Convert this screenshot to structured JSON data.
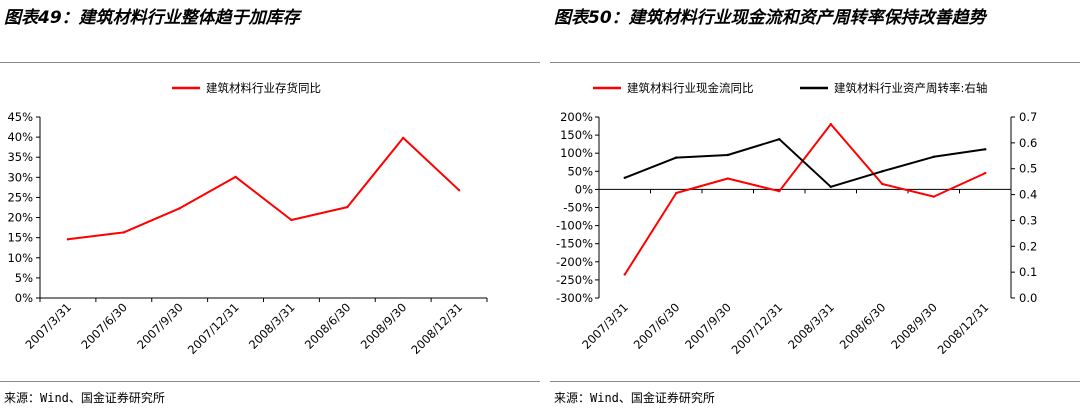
{
  "left": {
    "title": "图表49：建筑材料行业整体趋于加库存",
    "source": "来源：Wind、国金证券研究所",
    "chart_data": {
      "type": "line",
      "categories": [
        "2007/3/31",
        "2007/6/30",
        "2007/9/30",
        "2007/12/31",
        "2008/3/31",
        "2008/6/30",
        "2008/9/30",
        "2008/12/31"
      ],
      "series": [
        {
          "name": "建筑材料行业存货同比",
          "color": "#ff0000",
          "values": [
            14.6,
            16.3,
            22.3,
            30.1,
            19.4,
            22.6,
            39.8,
            26.8
          ]
        }
      ],
      "yticks": [
        "0%",
        "5%",
        "10%",
        "15%",
        "20%",
        "25%",
        "30%",
        "35%",
        "40%",
        "45%"
      ],
      "ylim": [
        0,
        45
      ],
      "legend": "top-center",
      "grid": false
    }
  },
  "right": {
    "title": "图表50：建筑材料行业现金流和资产周转率保持改善趋势",
    "source": "来源：Wind、国金证券研究所",
    "chart_data": {
      "type": "line",
      "categories": [
        "2007/3/31",
        "2007/6/30",
        "2007/9/30",
        "2007/12/31",
        "2008/3/31",
        "2008/6/30",
        "2008/9/30",
        "2008/12/31"
      ],
      "series": [
        {
          "name": "建筑材料行业现金流同比",
          "color": "#ff0000",
          "axis": "left",
          "values": [
            -235,
            -10,
            30,
            -5,
            180,
            15,
            -20,
            45
          ]
        },
        {
          "name": "建筑材料行业资产周转率:右轴",
          "color": "#000000",
          "axis": "right",
          "values": [
            0.465,
            0.543,
            0.553,
            0.614,
            0.43,
            0.49,
            0.546,
            0.575
          ]
        }
      ],
      "yticks_left": [
        "-300%",
        "-250%",
        "-200%",
        "-150%",
        "-100%",
        "-50%",
        "0%",
        "50%",
        "100%",
        "150%",
        "200%"
      ],
      "ylim_left": [
        -300,
        200
      ],
      "yticks_right": [
        "0.0",
        "0.1",
        "0.2",
        "0.3",
        "0.4",
        "0.5",
        "0.6",
        "0.7"
      ],
      "ylim_right": [
        0,
        0.7
      ],
      "legend": "top",
      "grid": false
    }
  }
}
